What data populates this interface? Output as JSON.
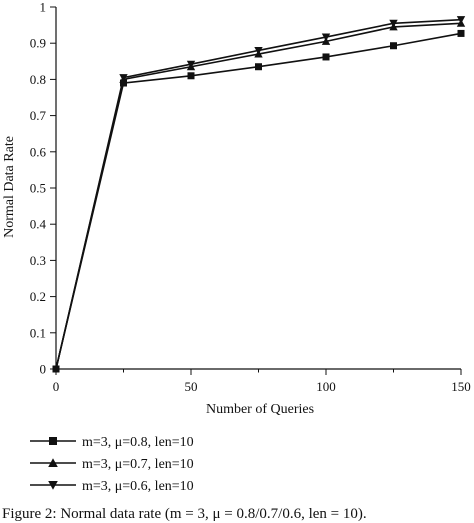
{
  "chart_data": {
    "type": "line",
    "xlabel": "Number of Queries",
    "ylabel": "Normal Data Rate",
    "xlim": [
      0,
      150
    ],
    "ylim": [
      0,
      1
    ],
    "xticks": [
      "0",
      "50",
      "100",
      "150"
    ],
    "xticks_minor": [
      25,
      75,
      125
    ],
    "yticks": [
      "0",
      "0.1",
      "0.2",
      "0.3",
      "0.4",
      "0.5",
      "0.6",
      "0.7",
      "0.8",
      "0.9",
      "1"
    ],
    "grid": false,
    "legend_position": "bottom-left, below plot",
    "x": [
      0,
      25,
      50,
      75,
      100,
      125,
      150
    ],
    "series": [
      {
        "name": "m=3, μ=0.8, len=10",
        "marker": "square",
        "values": [
          0,
          0.79,
          0.81,
          0.835,
          0.862,
          0.893,
          0.927
        ]
      },
      {
        "name": "m=3, μ=0.7, len=10",
        "marker": "triangle-up",
        "values": [
          0,
          0.8,
          0.835,
          0.87,
          0.905,
          0.945,
          0.955
        ]
      },
      {
        "name": "m=3, μ=0.6, len=10",
        "marker": "triangle-down",
        "values": [
          0,
          0.805,
          0.842,
          0.88,
          0.917,
          0.955,
          0.965
        ]
      }
    ],
    "caption": "Figure 2: Normal data rate (m = 3, μ = 0.8/0.7/0.6, len = 10)."
  },
  "colors": {
    "line": "#111111",
    "background": "#ffffff"
  }
}
